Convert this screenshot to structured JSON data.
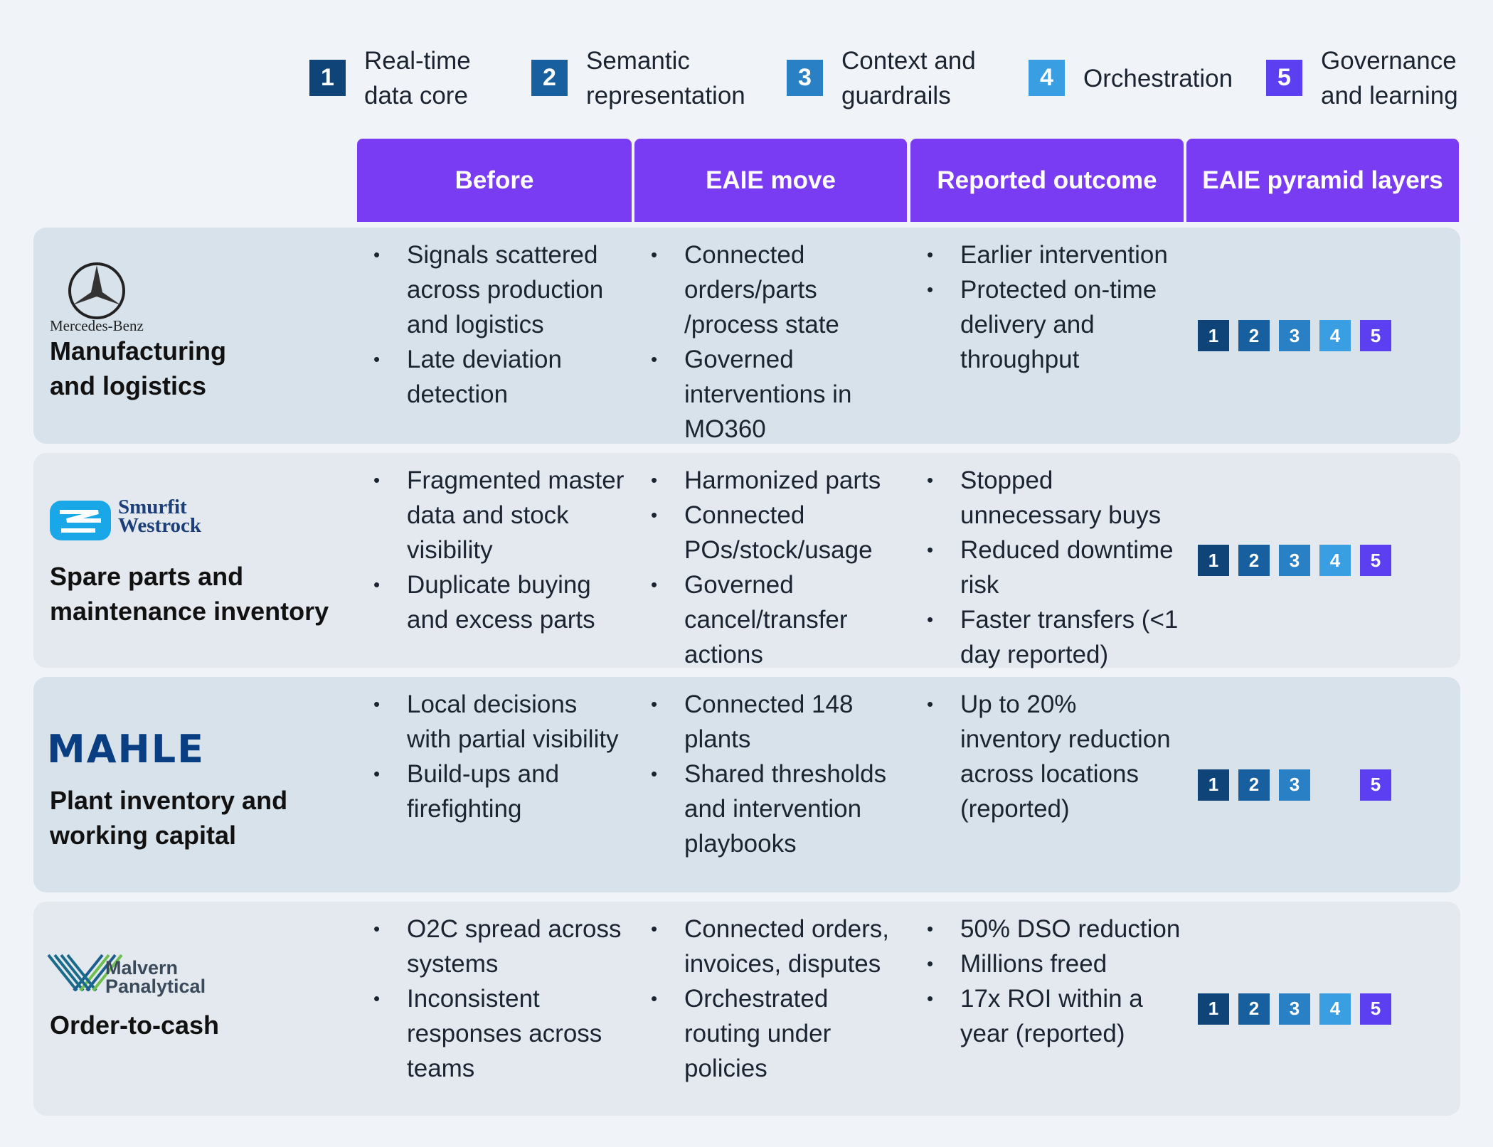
{
  "legend": [
    {
      "number": "1",
      "label": "Real-time data core",
      "color": "#0f4479"
    },
    {
      "number": "2",
      "label": "Semantic representation",
      "color": "#175f9f"
    },
    {
      "number": "3",
      "label": "Context and guardrails",
      "color": "#2a80c4"
    },
    {
      "number": "4",
      "label": "Orchestration",
      "color": "#3a9fe2"
    },
    {
      "number": "5",
      "label": "Governance and learning",
      "color": "#5b3ff0"
    }
  ],
  "table": {
    "headers": [
      "Before",
      "EAIE move",
      "Reported outcome",
      "EAIE pyramid layers"
    ],
    "rows": [
      {
        "company": "Mercedes-Benz",
        "label": [
          "Manufacturing",
          "and logistics"
        ],
        "before": [
          "Signals scattered across production and logistics",
          "Late deviation detection"
        ],
        "move": [
          "Connected orders/parts /process state",
          "Governed interventions in MO360"
        ],
        "outcome": [
          "Earlier intervention",
          "Protected on-time delivery and throughput"
        ],
        "layers": [
          "1",
          "2",
          "3",
          "4",
          "5"
        ]
      },
      {
        "company": "Smurfit Westrock",
        "label": [
          "Spare parts and",
          "maintenance inventory"
        ],
        "before": [
          "Fragmented master data and stock visibility",
          "Duplicate buying and excess parts"
        ],
        "move": [
          "Harmonized parts",
          "Connected POs/stock/usage",
          "Governed cancel/transfer actions"
        ],
        "outcome": [
          "Stopped unnecessary buys",
          "Reduced downtime risk",
          "Faster transfers (<1 day reported)"
        ],
        "layers": [
          "1",
          "2",
          "3",
          "4",
          "5"
        ]
      },
      {
        "company": "MAHLE",
        "label": [
          "Plant inventory and",
          "working capital"
        ],
        "before": [
          "Local decisions with partial visibility",
          "Build-ups and firefighting"
        ],
        "move": [
          "Connected 148 plants",
          "Shared thresholds and intervention playbooks"
        ],
        "outcome": [
          "Up to 20% inventory reduction across locations (reported)"
        ],
        "layers": [
          "1",
          "2",
          "3",
          "5"
        ]
      },
      {
        "company": "Malvern Panalytical",
        "label": [
          "Order-to-cash"
        ],
        "before": [
          "O2C spread across systems",
          "Inconsistent responses across teams"
        ],
        "move": [
          "Connected orders, invoices, disputes",
          "Orchestrated routing under policies"
        ],
        "outcome": [
          "50% DSO reduction",
          "Millions freed",
          "17x ROI within a year (reported)"
        ],
        "layers": [
          "1",
          "2",
          "3",
          "4",
          "5"
        ]
      }
    ]
  }
}
